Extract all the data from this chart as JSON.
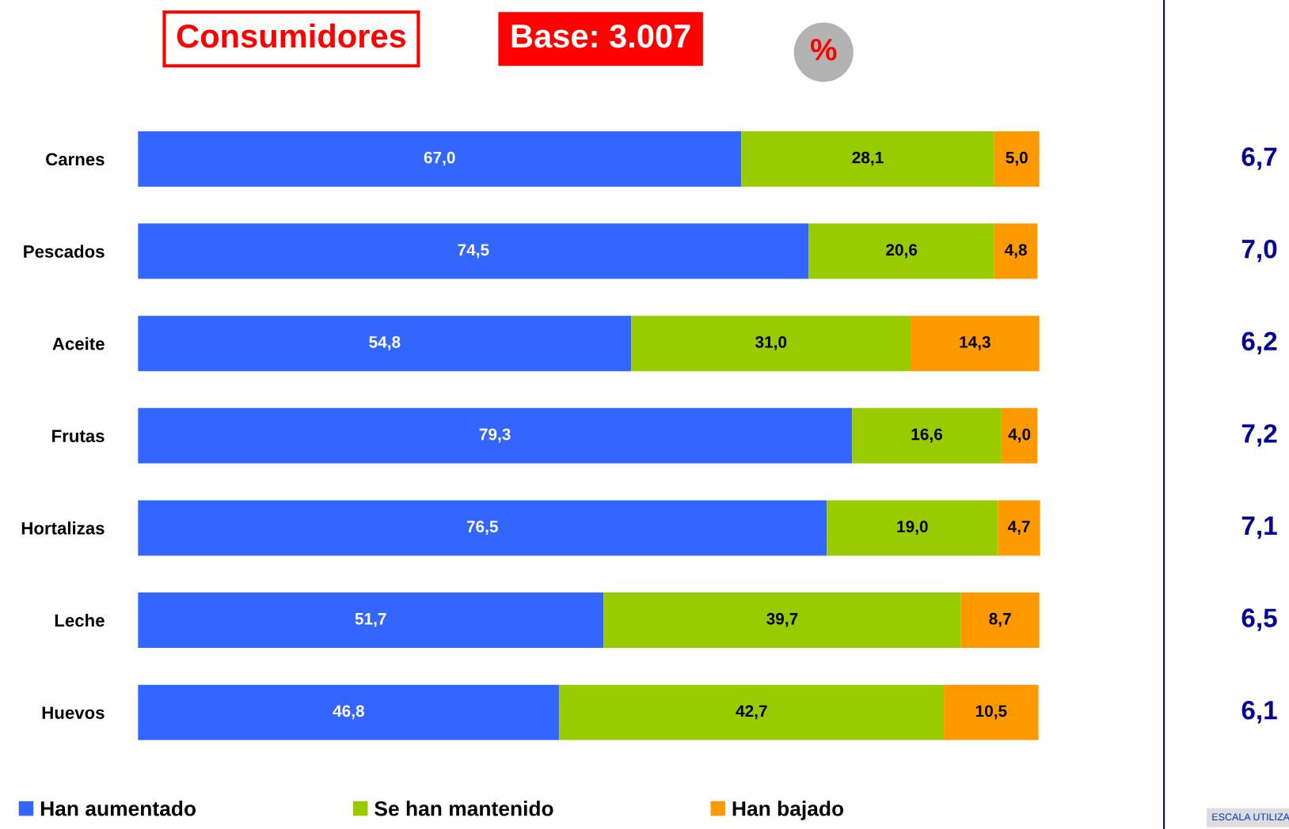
{
  "chart_data": {
    "type": "bar",
    "orientation": "horizontal",
    "stacked": true,
    "title": "Consumidores",
    "subtitle": "Base: 3.007",
    "categories": [
      "Carnes",
      "Pescados",
      "Aceite",
      "Frutas",
      "Hortalizas",
      "Leche",
      "Huevos"
    ],
    "series": [
      {
        "name": "Han aumentado",
        "color": "#3366ff",
        "values": [
          67.0,
          74.5,
          54.8,
          79.3,
          76.5,
          51.7,
          46.8
        ],
        "value_labels": [
          "67,0",
          "74,5",
          "54,8",
          "79,3",
          "76,5",
          "51,7",
          "46,8"
        ]
      },
      {
        "name": "Se han mantenido",
        "color": "#99cc00",
        "values": [
          28.1,
          20.6,
          31.0,
          16.6,
          19.0,
          39.7,
          42.7
        ],
        "value_labels": [
          "28,1",
          "20,6",
          "31,0",
          "16,6",
          "19,0",
          "39,7",
          "42,7"
        ]
      },
      {
        "name": "Han bajado",
        "color": "#ff9900",
        "values": [
          5.0,
          4.8,
          14.3,
          4.0,
          4.7,
          8.7,
          10.5
        ],
        "value_labels": [
          "5,0",
          "4,8",
          "14,3",
          "4,0",
          "4,7",
          "8,7",
          "10,5"
        ]
      }
    ],
    "annotations": [
      "%",
      "6,7",
      "7,0",
      "6,2",
      "7,2",
      "7,1",
      "6,5",
      "6,1",
      "ESCALA UTILIZA"
    ],
    "legend": "bottom",
    "tick_labels": "y",
    "grid": false
  }
}
